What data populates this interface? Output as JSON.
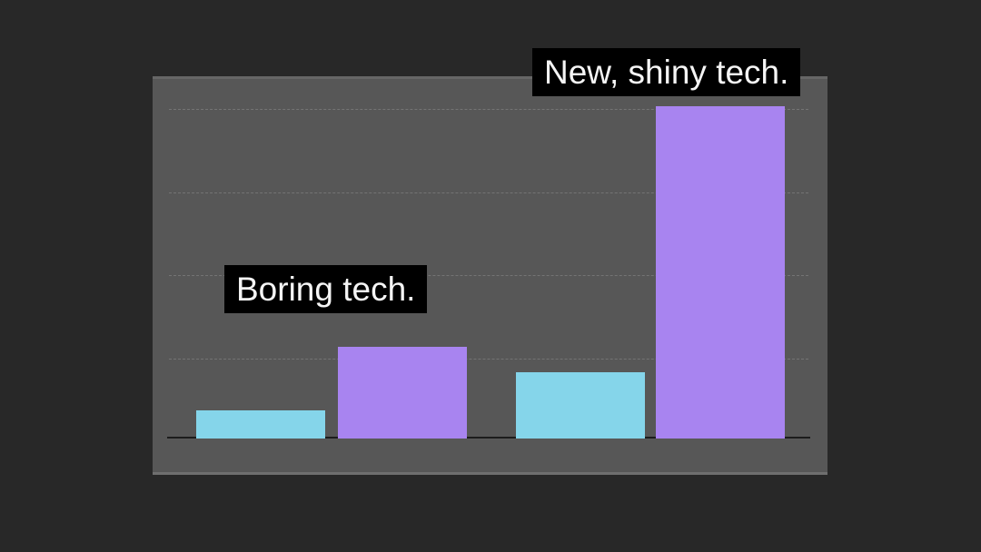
{
  "slide": {
    "background_color": "#282828",
    "panel_color": "#575757",
    "axis_color": "#1c1c1c"
  },
  "chart_data": {
    "type": "bar",
    "title": "",
    "xlabel": "",
    "ylabel": "",
    "categories": [
      "boring-tech-group",
      "new-shiny-tech-group"
    ],
    "series": [
      {
        "name": "cyan-series",
        "color": "#85d5ea",
        "values": [
          0.34,
          0.8
        ]
      },
      {
        "name": "purple-series",
        "color": "#a884f0",
        "values": [
          1.1,
          4.0
        ]
      }
    ],
    "ylim": [
      0,
      4.35
    ],
    "gridlines": {
      "values": [
        1,
        2,
        3,
        4
      ],
      "style": "dotted"
    },
    "legend": "none",
    "tick_labels": "none",
    "annotations": [
      {
        "id": "boring",
        "text": "Boring tech.",
        "text_color": "#f5f5f5",
        "background": "#000000"
      },
      {
        "id": "shiny",
        "text": "New, shiny tech.",
        "text_color": "#f5f5f5",
        "background": "#000000"
      }
    ]
  }
}
